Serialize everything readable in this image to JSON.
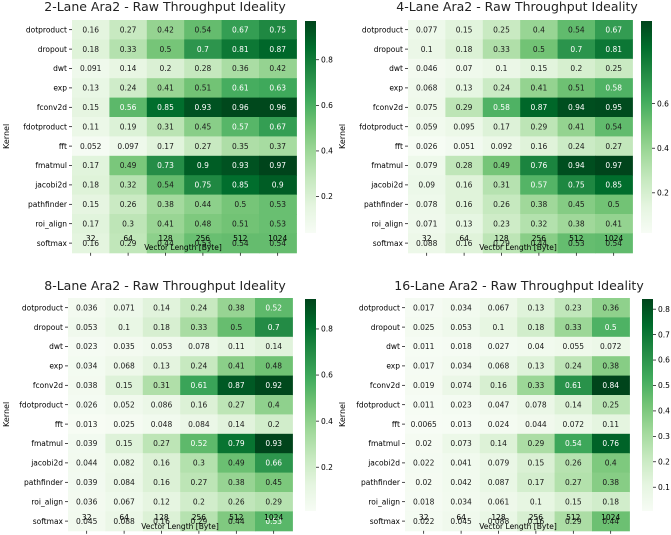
{
  "chart_data": [
    {
      "type": "heatmap",
      "title": "2-Lane Ara2 - Raw Throughput Ideality",
      "xlabel": "Vector Length [Byte]",
      "ylabel": "Kernel",
      "x_categories": [
        "32",
        "64",
        "128",
        "256",
        "512",
        "1024"
      ],
      "y_categories": [
        "dotproduct",
        "dropout",
        "dwt",
        "exp",
        "fconv2d",
        "fdotproduct",
        "fft",
        "fmatmul",
        "jacobi2d",
        "pathfinder",
        "roi_align",
        "softmax"
      ],
      "values": [
        [
          "0.16",
          "0.27",
          "0.42",
          "0.54",
          "0.67",
          "0.75"
        ],
        [
          "0.18",
          "0.33",
          "0.5",
          "0.7",
          "0.81",
          "0.87"
        ],
        [
          "0.091",
          "0.14",
          "0.2",
          "0.28",
          "0.36",
          "0.42"
        ],
        [
          "0.13",
          "0.24",
          "0.41",
          "0.51",
          "0.61",
          "0.63"
        ],
        [
          "0.15",
          "0.56",
          "0.85",
          "0.93",
          "0.96",
          "0.96"
        ],
        [
          "0.11",
          "0.19",
          "0.31",
          "0.45",
          "0.57",
          "0.67"
        ],
        [
          "0.052",
          "0.097",
          "0.17",
          "0.27",
          "0.35",
          "0.37"
        ],
        [
          "0.17",
          "0.49",
          "0.73",
          "0.9",
          "0.93",
          "0.97"
        ],
        [
          "0.18",
          "0.32",
          "0.54",
          "0.75",
          "0.85",
          "0.9"
        ],
        [
          "0.15",
          "0.26",
          "0.38",
          "0.44",
          "0.5",
          "0.53"
        ],
        [
          "0.17",
          "0.3",
          "0.41",
          "0.48",
          "0.51",
          "0.53"
        ],
        [
          "0.16",
          "0.29",
          "0.44",
          "0.53",
          "0.54",
          "0.54"
        ]
      ],
      "colorbar_ticks": [
        "0.2",
        "0.4",
        "0.6",
        "0.8"
      ],
      "colorbar_range": [
        0.04,
        0.97
      ]
    },
    {
      "type": "heatmap",
      "title": "4-Lane Ara2 - Raw Throughput Ideality",
      "xlabel": "Vector Length [Byte]",
      "ylabel": "Kernel",
      "x_categories": [
        "32",
        "64",
        "128",
        "256",
        "512",
        "1024"
      ],
      "y_categories": [
        "dotproduct",
        "dropout",
        "dwt",
        "exp",
        "fconv2d",
        "fdotproduct",
        "fft",
        "fmatmul",
        "jacobi2d",
        "pathfinder",
        "roi_align",
        "softmax"
      ],
      "values": [
        [
          "0.077",
          "0.15",
          "0.25",
          "0.4",
          "0.54",
          "0.67"
        ],
        [
          "0.1",
          "0.18",
          "0.33",
          "0.5",
          "0.7",
          "0.81"
        ],
        [
          "0.046",
          "0.07",
          "0.1",
          "0.15",
          "0.2",
          "0.25"
        ],
        [
          "0.068",
          "0.13",
          "0.24",
          "0.41",
          "0.51",
          "0.58"
        ],
        [
          "0.075",
          "0.29",
          "0.58",
          "0.87",
          "0.94",
          "0.95"
        ],
        [
          "0.059",
          "0.095",
          "0.17",
          "0.29",
          "0.41",
          "0.54"
        ],
        [
          "0.026",
          "0.051",
          "0.092",
          "0.16",
          "0.24",
          "0.27"
        ],
        [
          "0.079",
          "0.28",
          "0.49",
          "0.76",
          "0.94",
          "0.97"
        ],
        [
          "0.09",
          "0.16",
          "0.31",
          "0.57",
          "0.75",
          "0.85"
        ],
        [
          "0.078",
          "0.16",
          "0.26",
          "0.38",
          "0.45",
          "0.5"
        ],
        [
          "0.071",
          "0.13",
          "0.23",
          "0.32",
          "0.38",
          "0.41"
        ],
        [
          "0.088",
          "0.16",
          "0.29",
          "0.44",
          "0.53",
          "0.54"
        ]
      ],
      "colorbar_ticks": [
        "0.2",
        "0.4",
        "0.6"
      ],
      "colorbar_range": [
        0.02,
        0.97
      ]
    },
    {
      "type": "heatmap",
      "title": "8-Lane Ara2 - Raw Throughput Ideality",
      "xlabel": "Vector Length [Byte]",
      "ylabel": "Kernel",
      "x_categories": [
        "32",
        "64",
        "128",
        "256",
        "512",
        "1024"
      ],
      "y_categories": [
        "dotproduct",
        "dropout",
        "dwt",
        "exp",
        "fconv2d",
        "fdotproduct",
        "fft",
        "fmatmul",
        "jacobi2d",
        "pathfinder",
        "roi_align",
        "softmax"
      ],
      "values": [
        [
          "0.036",
          "0.071",
          "0.14",
          "0.24",
          "0.38",
          "0.52"
        ],
        [
          "0.053",
          "0.1",
          "0.18",
          "0.33",
          "0.5",
          "0.7"
        ],
        [
          "0.023",
          "0.035",
          "0.053",
          "0.078",
          "0.11",
          "0.14"
        ],
        [
          "0.034",
          "0.068",
          "0.13",
          "0.24",
          "0.41",
          "0.48"
        ],
        [
          "0.038",
          "0.15",
          "0.31",
          "0.61",
          "0.87",
          "0.92"
        ],
        [
          "0.026",
          "0.052",
          "0.086",
          "0.16",
          "0.27",
          "0.4"
        ],
        [
          "0.013",
          "0.025",
          "0.048",
          "0.084",
          "0.14",
          "0.2"
        ],
        [
          "0.039",
          "0.15",
          "0.27",
          "0.52",
          "0.79",
          "0.93"
        ],
        [
          "0.044",
          "0.082",
          "0.16",
          "0.3",
          "0.49",
          "0.66"
        ],
        [
          "0.039",
          "0.084",
          "0.16",
          "0.27",
          "0.38",
          "0.45"
        ],
        [
          "0.036",
          "0.067",
          "0.12",
          "0.2",
          "0.26",
          "0.29"
        ],
        [
          "0.045",
          "0.088",
          "0.16",
          "0.29",
          "0.44",
          "0.53"
        ]
      ],
      "colorbar_ticks": [
        "0.2",
        "0.4",
        "0.6",
        "0.8"
      ],
      "colorbar_range": [
        0.01,
        0.93
      ]
    },
    {
      "type": "heatmap",
      "title": "16-Lane Ara2 - Raw Throughput Ideality",
      "xlabel": "Vector Length [Byte]",
      "ylabel": "Kernel",
      "x_categories": [
        "32",
        "64",
        "128",
        "256",
        "512",
        "1024"
      ],
      "y_categories": [
        "dotproduct",
        "dropout",
        "dwt",
        "exp",
        "fconv2d",
        "fdotproduct",
        "fft",
        "fmatmul",
        "jacobi2d",
        "pathfinder",
        "roi_align",
        "softmax"
      ],
      "values": [
        [
          "0.017",
          "0.034",
          "0.067",
          "0.13",
          "0.23",
          "0.36"
        ],
        [
          "0.025",
          "0.053",
          "0.1",
          "0.18",
          "0.33",
          "0.5"
        ],
        [
          "0.011",
          "0.018",
          "0.027",
          "0.04",
          "0.055",
          "0.072"
        ],
        [
          "0.017",
          "0.034",
          "0.068",
          "0.13",
          "0.24",
          "0.38"
        ],
        [
          "0.019",
          "0.074",
          "0.16",
          "0.33",
          "0.61",
          "0.84"
        ],
        [
          "0.011",
          "0.023",
          "0.047",
          "0.078",
          "0.14",
          "0.25"
        ],
        [
          "0.0065",
          "0.013",
          "0.024",
          "0.044",
          "0.072",
          "0.11"
        ],
        [
          "0.02",
          "0.073",
          "0.14",
          "0.29",
          "0.54",
          "0.76"
        ],
        [
          "0.022",
          "0.041",
          "0.079",
          "0.15",
          "0.26",
          "0.4"
        ],
        [
          "0.02",
          "0.042",
          "0.087",
          "0.17",
          "0.27",
          "0.38"
        ],
        [
          "0.018",
          "0.034",
          "0.061",
          "0.1",
          "0.15",
          "0.18"
        ],
        [
          "0.022",
          "0.045",
          "0.088",
          "0.16",
          "0.29",
          "0.44"
        ]
      ],
      "colorbar_ticks": [
        "0.1",
        "0.2",
        "0.3",
        "0.4",
        "0.5",
        "0.6",
        "0.7",
        "0.8"
      ],
      "colorbar_range": [
        0.0065,
        0.84
      ]
    }
  ]
}
